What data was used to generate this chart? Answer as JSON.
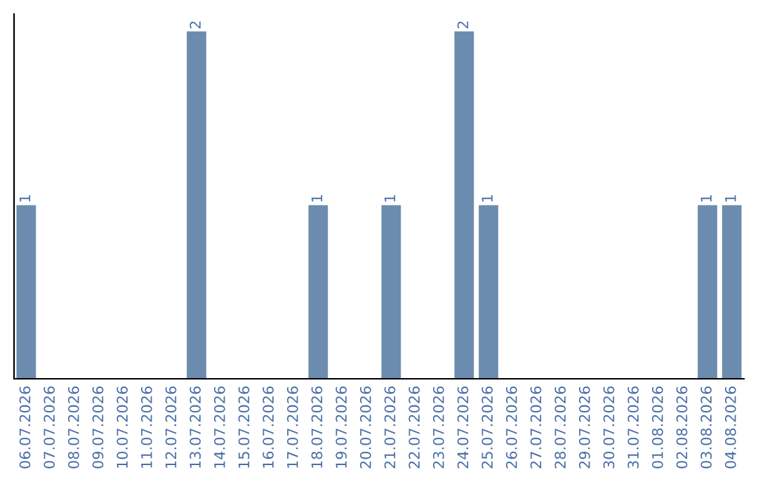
{
  "chart_data": {
    "type": "bar",
    "categories": [
      "06.07.2026",
      "07.07.2026",
      "08.07.2026",
      "09.07.2026",
      "10.07.2026",
      "11.07.2026",
      "12.07.2026",
      "13.07.2026",
      "14.07.2026",
      "15.07.2026",
      "16.07.2026",
      "17.07.2026",
      "18.07.2026",
      "19.07.2026",
      "20.07.2026",
      "21.07.2026",
      "22.07.2026",
      "23.07.2026",
      "24.07.2026",
      "25.07.2026",
      "26.07.2026",
      "27.07.2026",
      "28.07.2026",
      "29.07.2026",
      "30.07.2026",
      "31.07.2026",
      "01.08.2026",
      "02.08.2026",
      "03.08.2026",
      "04.08.2026"
    ],
    "values": [
      1,
      0,
      0,
      0,
      0,
      0,
      0,
      2,
      0,
      0,
      0,
      0,
      1,
      0,
      0,
      1,
      0,
      0,
      2,
      1,
      0,
      0,
      0,
      0,
      0,
      0,
      0,
      0,
      1,
      1
    ],
    "value_labels": [
      "1",
      null,
      null,
      null,
      null,
      null,
      null,
      "2",
      null,
      null,
      null,
      null,
      "1",
      null,
      null,
      "1",
      null,
      null,
      "2",
      "1",
      null,
      null,
      null,
      null,
      null,
      null,
      null,
      null,
      "1",
      "1"
    ],
    "color": "#6b8cae",
    "tick_labels": "x",
    "grid": false,
    "legend": false
  }
}
